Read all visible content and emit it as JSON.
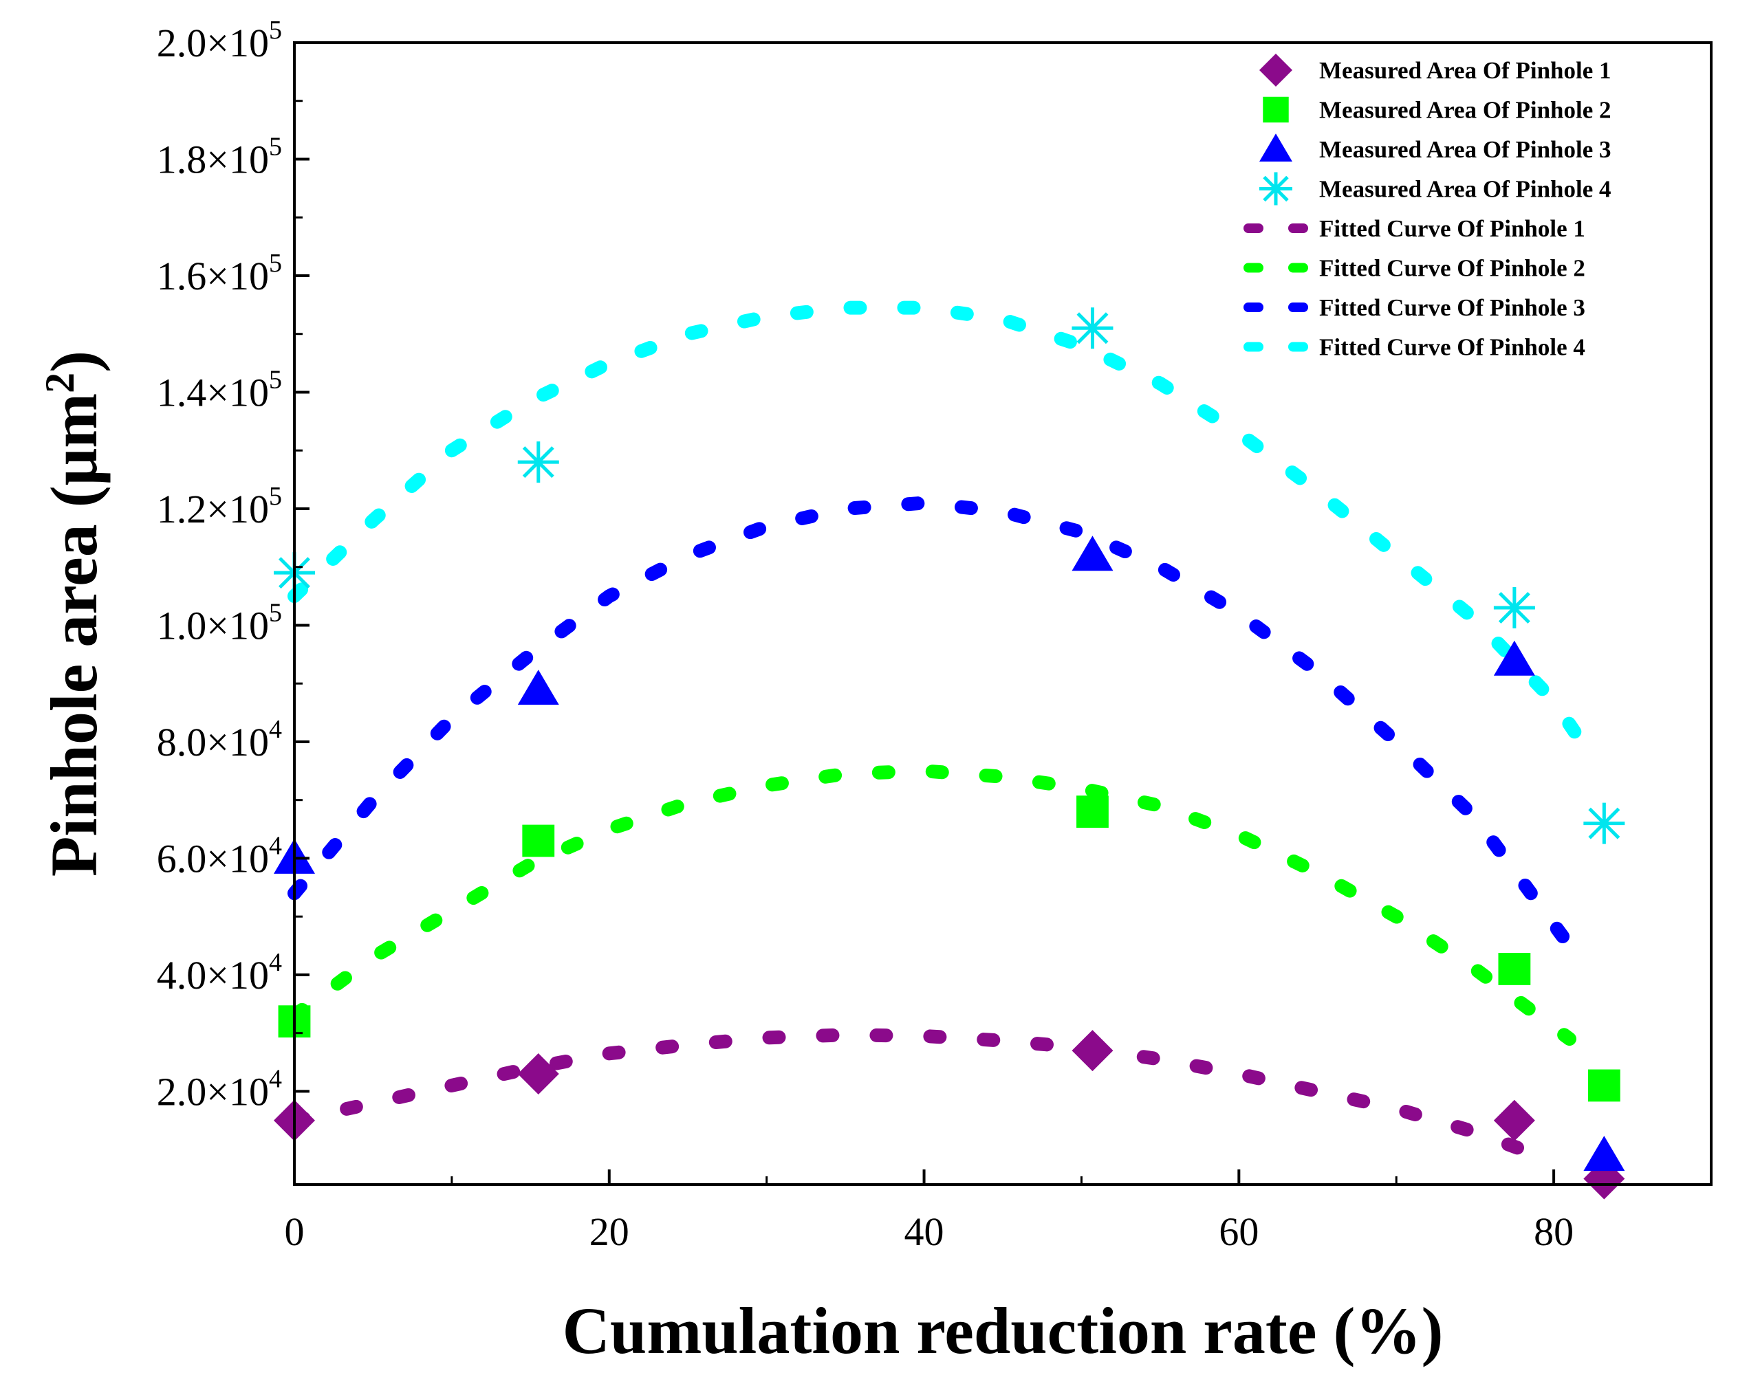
{
  "chart_data": {
    "type": "scatter",
    "xlabel": "Cumulation reduction rate (%)",
    "ylabel_main": "Pinhole area (μm",
    "ylabel_sup": "2",
    "ylabel_close": ")",
    "xlim": [
      0,
      90
    ],
    "ylim": [
      4000,
      200000
    ],
    "x_ticks": [
      {
        "value": 0,
        "label": "0"
      },
      {
        "value": 20,
        "label": "20"
      },
      {
        "value": 40,
        "label": "40"
      },
      {
        "value": 60,
        "label": "60"
      },
      {
        "value": 80,
        "label": "80"
      }
    ],
    "y_ticks": [
      {
        "value": 20000,
        "mantissa": "2.0×10",
        "exponent": "4"
      },
      {
        "value": 40000,
        "mantissa": "4.0×10",
        "exponent": "4"
      },
      {
        "value": 60000,
        "mantissa": "6.0×10",
        "exponent": "4"
      },
      {
        "value": 80000,
        "mantissa": "8.0×10",
        "exponent": "4"
      },
      {
        "value": 100000,
        "mantissa": "1.0×10",
        "exponent": "5"
      },
      {
        "value": 120000,
        "mantissa": "1.2×10",
        "exponent": "5"
      },
      {
        "value": 140000,
        "mantissa": "1.4×10",
        "exponent": "5"
      },
      {
        "value": 160000,
        "mantissa": "1.6×10",
        "exponent": "5"
      },
      {
        "value": 180000,
        "mantissa": "1.8×10",
        "exponent": "5"
      },
      {
        "value": 200000,
        "mantissa": "2.0×10",
        "exponent": "5"
      }
    ],
    "measured": [
      {
        "name": "Measured Area Of Pinhole 1",
        "marker": "diamond",
        "color": "#8B0A8B",
        "x": [
          0,
          15.5,
          50.7,
          77.5,
          83.2
        ],
        "y": [
          15000,
          23000,
          27000,
          15000,
          5000
        ]
      },
      {
        "name": "Measured Area Of Pinhole 2",
        "marker": "square",
        "color": "#00FF00",
        "x": [
          0,
          15.5,
          50.7,
          77.5,
          83.2
        ],
        "y": [
          32000,
          63000,
          68000,
          41000,
          21000
        ]
      },
      {
        "name": "Measured Area Of Pinhole 3",
        "marker": "triangle",
        "color": "#0000FF",
        "x": [
          0,
          15.5,
          50.7,
          77.5,
          83.2
        ],
        "y": [
          60000,
          89000,
          112000,
          94000,
          9000
        ]
      },
      {
        "name": "Measured Area Of Pinhole 4",
        "marker": "asterisk",
        "color": "#00E5EE",
        "x": [
          0,
          15.5,
          50.7,
          77.5,
          83.2
        ],
        "y": [
          109000,
          128000,
          151000,
          103000,
          66000
        ]
      }
    ],
    "fitted": [
      {
        "name": "Fitted Curve Of Pinhole 1",
        "color": "#8B0A8B",
        "x": [
          0,
          5,
          10,
          15,
          20,
          25,
          30,
          35,
          40,
          45,
          50,
          55,
          60,
          65,
          70,
          75,
          79
        ],
        "y": [
          15000,
          18000,
          21000,
          24000,
          26500,
          28000,
          29200,
          29700,
          29500,
          28700,
          27500,
          25500,
          23000,
          20000,
          17000,
          13000,
          9000
        ]
      },
      {
        "name": "Fitted Curve Of Pinhole 2",
        "color": "#00FF00",
        "x": [
          0,
          5,
          10,
          15,
          20,
          25,
          30,
          35,
          40,
          45,
          50,
          55,
          60,
          65,
          70,
          75,
          81
        ],
        "y": [
          33000,
          43000,
          51000,
          59000,
          65000,
          69500,
          72500,
          74500,
          75000,
          74000,
          72000,
          69000,
          64000,
          57500,
          50000,
          41000,
          29000
        ]
      },
      {
        "name": "Fitted Curve Of Pinhole 3",
        "color": "#0000FF",
        "x": [
          0,
          5,
          10,
          15,
          20,
          25,
          30,
          35,
          40,
          45,
          50,
          55,
          60,
          65,
          70,
          75,
          81
        ],
        "y": [
          54000,
          70000,
          84000,
          95000,
          105000,
          112000,
          117000,
          120000,
          121000,
          119500,
          116000,
          110000,
          102000,
          92000,
          80000,
          67000,
          45000
        ]
      },
      {
        "name": "Fitted Curve Of Pinhole 4",
        "color": "#00FFFF",
        "x": [
          0,
          5,
          10,
          15,
          20,
          25,
          30,
          35,
          40,
          45,
          50,
          55,
          60,
          65,
          70,
          75,
          80,
          82
        ],
        "y": [
          105000,
          118000,
          130000,
          138500,
          145000,
          150000,
          153000,
          154500,
          154500,
          152500,
          148000,
          141500,
          133000,
          123000,
          112000,
          101000,
          87000,
          79000
        ]
      }
    ],
    "legend": {
      "position": "top-right",
      "entries": [
        "Measured Area Of Pinhole 1",
        "Measured Area Of Pinhole 2",
        "Measured Area Of Pinhole 3",
        "Measured Area Of Pinhole 4",
        "Fitted Curve Of Pinhole 1",
        "Fitted Curve Of Pinhole 2",
        "Fitted Curve Of Pinhole 3",
        "Fitted Curve Of Pinhole 4"
      ]
    }
  }
}
